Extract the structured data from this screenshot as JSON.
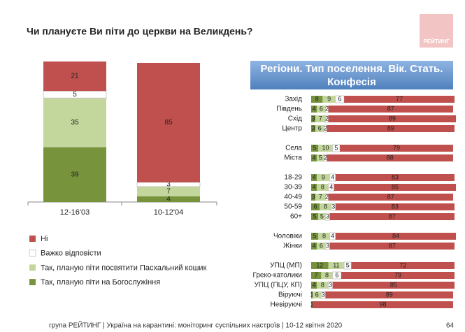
{
  "title": "Чи плануєте Ви піти до церкви на Великдень?",
  "logo": "РЕЙТИНГ",
  "footer": "група РЕЙТИНГ | Україна на карантині: моніторинг суспільних настроїв  | 10-12 квітня  2020",
  "page_number": "64",
  "chart_data": [
    {
      "type": "bar",
      "stacked": true,
      "categories": [
        "12-16'03",
        "10-12'04"
      ],
      "ylim": [
        0,
        100
      ],
      "series": [
        {
          "name": "Ні",
          "color": "#c0504d",
          "values": [
            21,
            85
          ]
        },
        {
          "name": "Важко відповісти",
          "color": "#ffffff",
          "values": [
            5,
            3
          ]
        },
        {
          "name": "Так, планую піти посвятити Пасхальний кошик",
          "color": "#c3d69b",
          "values": [
            35,
            7
          ]
        },
        {
          "name": "Так, планую піти на Богослужіння",
          "color": "#77933c",
          "values": [
            39,
            4
          ]
        }
      ]
    },
    {
      "type": "barh",
      "stacked": true,
      "title": "Регіони. Тип поселення. Вік. Стать. Конфесія",
      "xlim": [
        0,
        100
      ],
      "categories": [
        "Захід",
        "Південь",
        "Схід",
        "Центр",
        null,
        "Села",
        "Міста",
        null,
        "18-29",
        "30-39",
        "40-49",
        "50-59",
        "60+",
        null,
        "Чоловіки",
        "Жінки",
        null,
        "УПЦ (МП)",
        "Греко-католики",
        "УПЦ (ПЦУ, КП)",
        "Віруючі",
        "Невіруючі"
      ],
      "series": [
        {
          "color": "#77933c",
          "values": [
            8,
            4,
            3,
            3,
            null,
            5,
            4,
            null,
            4,
            4,
            3,
            6,
            5,
            null,
            5,
            4,
            null,
            12,
            7,
            4,
            1,
            1
          ]
        },
        {
          "color": "#c3d69b",
          "values": [
            9,
            6,
            7,
            6,
            null,
            10,
            5,
            null,
            9,
            8,
            7,
            8,
            5,
            null,
            8,
            6,
            null,
            11,
            8,
            8,
            6,
            null
          ]
        },
        {
          "color": "#ffffff",
          "values": [
            6,
            2,
            2,
            2,
            null,
            5,
            2,
            null,
            4,
            4,
            2,
            3,
            3,
            null,
            4,
            3,
            null,
            5,
            6,
            3,
            3,
            null
          ]
        },
        {
          "color": "#c0504d",
          "values": [
            77,
            87,
            89,
            89,
            null,
            79,
            88,
            null,
            83,
            85,
            87,
            83,
            87,
            null,
            84,
            87,
            null,
            72,
            79,
            85,
            89,
            98
          ]
        }
      ]
    }
  ]
}
